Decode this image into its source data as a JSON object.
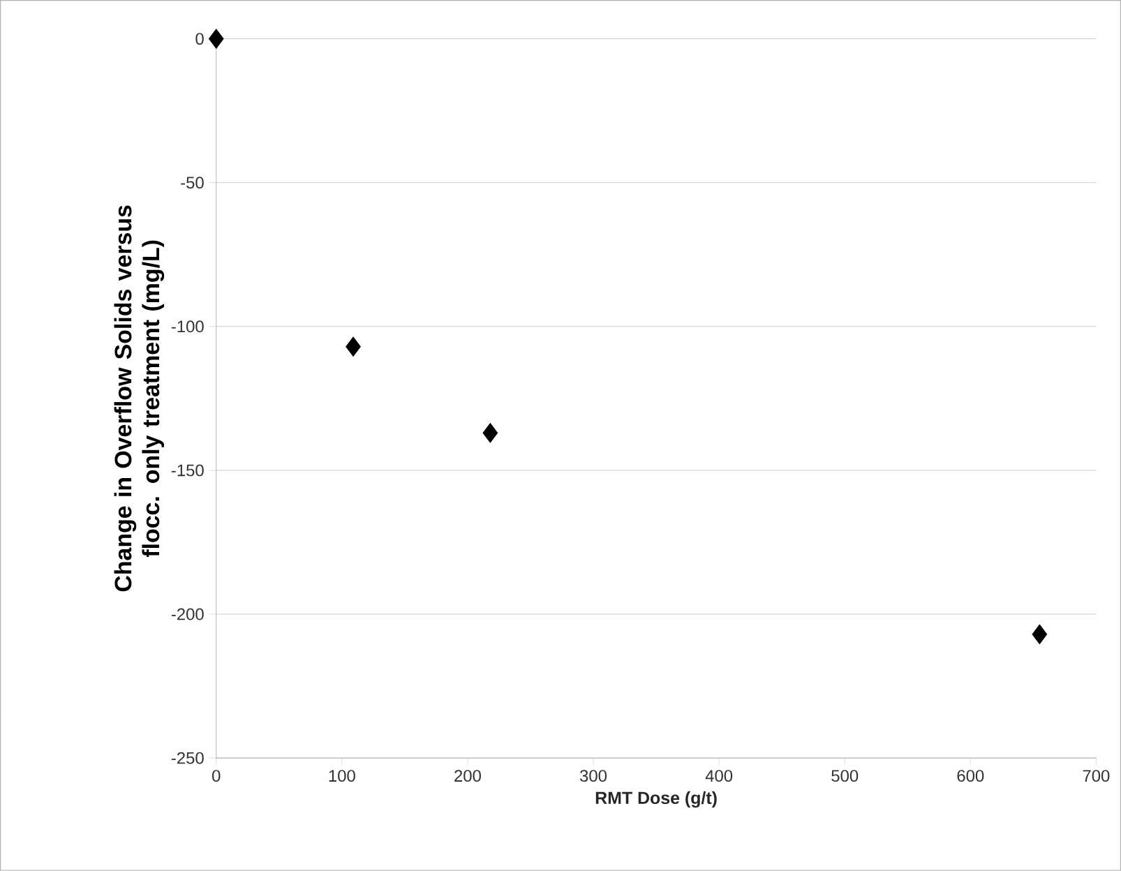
{
  "chart_data": {
    "type": "scatter",
    "xlabel": "RMT Dose (g/t)",
    "ylabel": "Change in Overflow Solids versus flocc. only treatment (mg/L)",
    "x": [
      0,
      109,
      218,
      655
    ],
    "values": [
      0,
      -107,
      -137,
      -207
    ],
    "color": "#000000",
    "marker": "diamond",
    "xlim": [
      0,
      700
    ],
    "xticks": [
      0,
      100,
      200,
      300,
      400,
      500,
      600,
      700
    ],
    "ylim": [
      -250,
      0
    ],
    "yticks": [
      -250,
      -200,
      -150,
      -100,
      -50,
      0
    ],
    "grid": "y"
  }
}
